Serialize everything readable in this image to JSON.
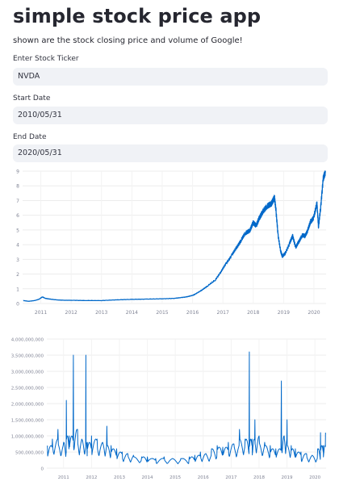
{
  "app": {
    "title": "simple stock price app",
    "description": "shown are the stock closing price and volume of Google!"
  },
  "form": {
    "ticker": {
      "label": "Enter Stock Ticker",
      "value": "NVDA"
    },
    "start_date": {
      "label": "Start Date",
      "value": "2010/05/31"
    },
    "end_date": {
      "label": "End Date",
      "value": "2020/05/31"
    }
  },
  "chart_data": [
    {
      "type": "line",
      "title": "",
      "xlabel": "",
      "ylabel": "",
      "color": "#0068c9",
      "grid": true,
      "x_ticks": [
        "2011",
        "2012",
        "2013",
        "2014",
        "2015",
        "2016",
        "2017",
        "2018",
        "2019",
        "2020"
      ],
      "y_ticks": [
        "0",
        "1",
        "2",
        "3",
        "4",
        "5",
        "6",
        "7",
        "8",
        "9"
      ],
      "xlim": [
        2010.4,
        2020.4
      ],
      "ylim": [
        0,
        9
      ],
      "series": [
        {
          "x": [
            2010.42,
            2010.6,
            2010.8,
            2010.95,
            2011.05,
            2011.15,
            2011.3,
            2011.5,
            2011.75,
            2012.0,
            2012.5,
            2013.0,
            2013.5,
            2014.0,
            2014.5,
            2015.0,
            2015.4,
            2015.6,
            2015.8,
            2016.0,
            2016.1,
            2016.3,
            2016.5,
            2016.75,
            2016.95,
            2017.1,
            2017.3,
            2017.45,
            2017.6,
            2017.75,
            2017.9,
            2018.0,
            2018.1,
            2018.2,
            2018.3,
            2018.45,
            2018.6,
            2018.7,
            2018.75,
            2018.82,
            2018.9,
            2018.96,
            2019.05,
            2019.2,
            2019.3,
            2019.4,
            2019.5,
            2019.6,
            2019.7,
            2019.8,
            2019.9,
            2020.0,
            2020.1,
            2020.15,
            2020.22,
            2020.3,
            2020.38
          ],
          "values": [
            0.2,
            0.15,
            0.2,
            0.3,
            0.45,
            0.35,
            0.3,
            0.25,
            0.22,
            0.22,
            0.2,
            0.2,
            0.25,
            0.28,
            0.3,
            0.32,
            0.35,
            0.4,
            0.45,
            0.55,
            0.65,
            0.9,
            1.2,
            1.6,
            2.2,
            2.7,
            3.3,
            3.8,
            4.3,
            4.8,
            5.0,
            5.5,
            5.3,
            5.8,
            6.2,
            6.6,
            6.8,
            7.2,
            6.3,
            4.6,
            3.6,
            3.2,
            3.4,
            4.1,
            4.6,
            3.8,
            4.2,
            4.6,
            4.6,
            5.0,
            5.6,
            5.9,
            6.8,
            5.2,
            6.5,
            8.4,
            8.9
          ]
        }
      ]
    },
    {
      "type": "line",
      "title": "",
      "xlabel": "",
      "ylabel": "",
      "color": "#0068c9",
      "grid": true,
      "x_ticks": [
        "2011",
        "2012",
        "2013",
        "2014",
        "2015",
        "2016",
        "2017",
        "2018",
        "2019",
        "2020"
      ],
      "y_ticks": [
        "0",
        "500,000,000",
        "1,000,000,000",
        "1,500,000,000",
        "2,000,000,000",
        "2,500,000,000",
        "3,000,000,000",
        "3,500,000,000",
        "4,000,000,000"
      ],
      "xlim": [
        2010.4,
        2020.4
      ],
      "ylim": [
        0,
        4000000000
      ],
      "series": [
        {
          "x": [
            2010.42,
            2010.6,
            2010.8,
            2011.0,
            2011.1,
            2011.2,
            2011.35,
            2011.5,
            2011.65,
            2011.8,
            2011.85,
            2012.0,
            2012.2,
            2012.4,
            2012.55,
            2012.7,
            2012.9,
            2013.1,
            2013.3,
            2013.5,
            2013.8,
            2014.0,
            2014.3,
            2014.6,
            2014.9,
            2015.2,
            2015.5,
            2015.7,
            2015.9,
            2016.1,
            2016.3,
            2016.5,
            2016.7,
            2016.9,
            2017.1,
            2017.3,
            2017.5,
            2017.65,
            2017.75,
            2017.85,
            2018.0,
            2018.2,
            2018.4,
            2018.6,
            2018.8,
            2018.9,
            2019.0,
            2019.15,
            2019.3,
            2019.5,
            2019.7,
            2019.9,
            2020.1,
            2020.2,
            2020.3,
            2020.38
          ],
          "values": [
            700000000,
            900000000,
            1200000000,
            800000000,
            2100000000,
            1000000000,
            3500000000,
            1200000000,
            900000000,
            3500000000,
            800000000,
            1000000000,
            900000000,
            800000000,
            1300000000,
            700000000,
            600000000,
            500000000,
            450000000,
            400000000,
            350000000,
            350000000,
            300000000,
            350000000,
            300000000,
            300000000,
            350000000,
            400000000,
            500000000,
            450000000,
            600000000,
            700000000,
            650000000,
            800000000,
            750000000,
            1200000000,
            900000000,
            3600000000,
            900000000,
            1500000000,
            1000000000,
            800000000,
            700000000,
            600000000,
            2700000000,
            1000000000,
            1500000000,
            700000000,
            600000000,
            500000000,
            450000000,
            400000000,
            600000000,
            1100000000,
            700000000,
            1100000000
          ]
        }
      ]
    }
  ]
}
